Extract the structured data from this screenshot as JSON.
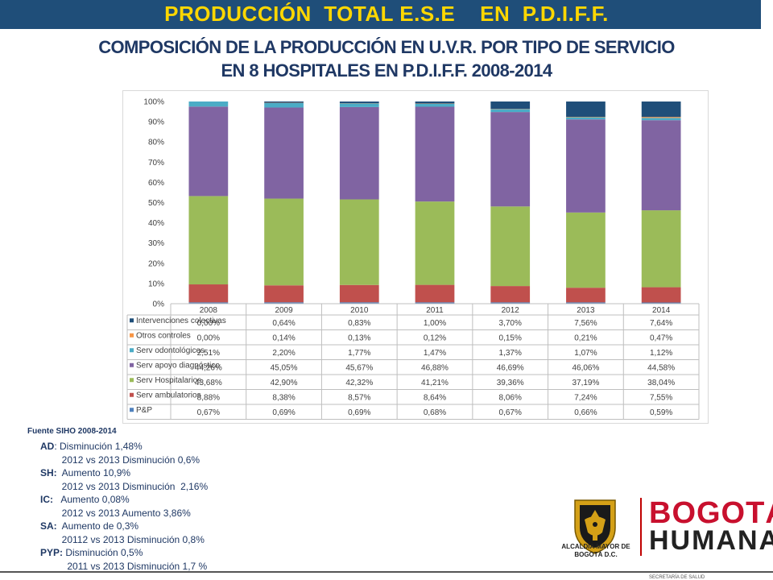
{
  "header": {
    "title": "PRODUCCIÓN  TOTAL E.S.E    EN  P.D.I.F.F.",
    "subtitle_line1": "COMPOSICIÓN DE LA PRODUCCIÓN EN U.V.R. POR TIPO DE SERVICIO",
    "subtitle_line2": "EN 8 HOSPITALES EN P.D.I.F.F. 2008-2014"
  },
  "chart_data": {
    "type": "bar",
    "stacked": true,
    "percent_stacked": true,
    "categories": [
      "2008",
      "2009",
      "2010",
      "2011",
      "2012",
      "2013",
      "2014"
    ],
    "y_ticks": [
      "0%",
      "10%",
      "20%",
      "30%",
      "40%",
      "50%",
      "60%",
      "70%",
      "80%",
      "90%",
      "100%"
    ],
    "ylim": [
      0,
      100
    ],
    "grid": false,
    "legend": "data-table",
    "series_bottom_to_top": [
      {
        "name": "P&P",
        "color": "#4f81bd",
        "values": [
          0.67,
          0.69,
          0.69,
          0.68,
          0.67,
          0.66,
          0.59
        ],
        "labels": [
          "0,67%",
          "0,69%",
          "0,69%",
          "0,68%",
          "0,67%",
          "0,66%",
          "0,59%"
        ]
      },
      {
        "name": "Serv ambulatorios",
        "color": "#c0504d",
        "values": [
          8.88,
          8.38,
          8.57,
          8.64,
          8.06,
          7.24,
          7.55
        ],
        "labels": [
          "8,88%",
          "8,38%",
          "8,57%",
          "8,64%",
          "8,06%",
          "7,24%",
          "7,55%"
        ]
      },
      {
        "name": "Serv Hospitalarios",
        "color": "#9bbb59",
        "values": [
          43.68,
          42.9,
          42.32,
          41.21,
          39.36,
          37.19,
          38.04
        ],
        "labels": [
          "43,68%",
          "42,90%",
          "42,32%",
          "41,21%",
          "39,36%",
          "37,19%",
          "38,04%"
        ]
      },
      {
        "name": "Serv apoyo diagnóstico",
        "color": "#8064a2",
        "values": [
          44.26,
          45.05,
          45.67,
          46.88,
          46.69,
          46.06,
          44.58
        ],
        "labels": [
          "44,26%",
          "45,05%",
          "45,67%",
          "46,88%",
          "46,69%",
          "46,06%",
          "44,58%"
        ]
      },
      {
        "name": "Serv odontológicos",
        "color": "#4bacc6",
        "values": [
          2.51,
          2.2,
          1.77,
          1.47,
          1.37,
          1.07,
          1.12
        ],
        "labels": [
          "2,51%",
          "2,20%",
          "1,77%",
          "1,47%",
          "1,37%",
          "1,07%",
          "1,12%"
        ]
      },
      {
        "name": "Otros controles",
        "color": "#f79646",
        "values": [
          0.0,
          0.14,
          0.13,
          0.12,
          0.15,
          0.21,
          0.47
        ],
        "labels": [
          "0,00%",
          "0,14%",
          "0,13%",
          "0,12%",
          "0,15%",
          "0,21%",
          "0,47%"
        ]
      },
      {
        "name": "Intervenciones colectivas",
        "color": "#1f4e79",
        "values": [
          0.0,
          0.64,
          0.83,
          1.0,
          3.7,
          7.56,
          7.64
        ],
        "labels": [
          "0,00%",
          "0,64%",
          "0,83%",
          "1,00%",
          "3,70%",
          "7,56%",
          "7,64%"
        ]
      }
    ]
  },
  "source": "Fuente SIHO 2008-2014",
  "notes": [
    {
      "key": "AD",
      "text": ": Disminución 1,48%"
    },
    {
      "key": "",
      "text": "        2012 vs 2013 Disminución 0,6%"
    },
    {
      "key": "SH:",
      "text": "  Aumento 10,9%"
    },
    {
      "key": "",
      "text": "        2012 vs 2013 Disminución  2,16%"
    },
    {
      "key": "IC:",
      "text": "   Aumento 0,08%"
    },
    {
      "key": "",
      "text": "        2012 vs 2013 Aumento 3,86%"
    },
    {
      "key": "SA:",
      "text": "  Aumento de 0,3%"
    },
    {
      "key": "",
      "text": "        20112 vs 2013 Disminución 0,8%"
    },
    {
      "key": "PYP:",
      "text": " Disminución 0,5%"
    },
    {
      "key": "",
      "text": "          2011 vs 2013 Disminución 1,7 %"
    }
  ],
  "logos": {
    "alcaldia": "ALCALDÍA MAYOR DE BOGOTÁ D.C.",
    "bogota": "BOGOTÁ",
    "humana": "HUMANA"
  },
  "footer": "SECRETARÍA DE SALUD"
}
